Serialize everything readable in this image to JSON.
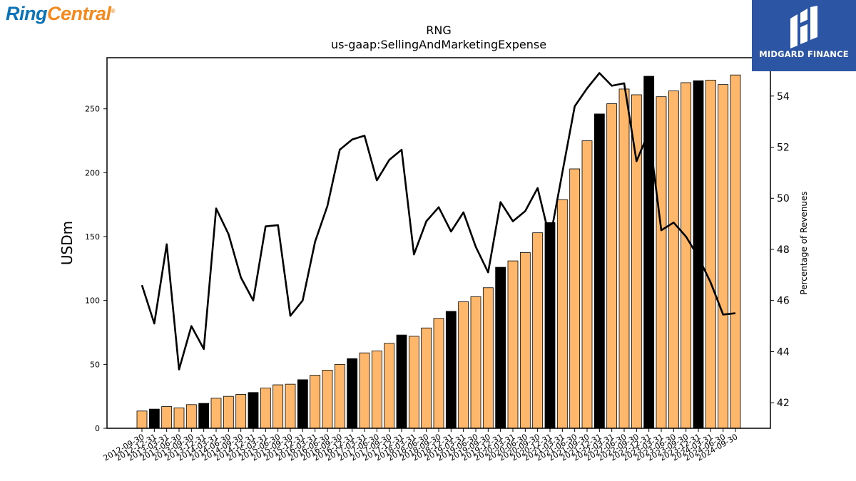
{
  "brand_left": {
    "part1": "Ring",
    "part2": "Central",
    "mark": "®"
  },
  "brand_right": {
    "name": "MIDGARD FINANCE",
    "icon": "midgard-m-logo"
  },
  "colors": {
    "bar_default": "#ffb86b",
    "bar_highlight": "#000000",
    "line": "#000000"
  },
  "chart_data": {
    "type": "bar",
    "title": "RNG",
    "subtitle": "us-gaap:SellingAndMarketingExpense",
    "ylabel": "USDm",
    "y2label": "Percentage of Revenues",
    "ylim": [
      0,
      290
    ],
    "y2lim": [
      41.0,
      55.5
    ],
    "yticks": [
      0,
      50,
      100,
      150,
      200,
      250
    ],
    "y2ticks": [
      42,
      44,
      46,
      48,
      50,
      52,
      54
    ],
    "grid": false,
    "categories": [
      "2012-09-30",
      "2012-12-31",
      "2013-03-31",
      "2013-06-30",
      "2013-09-30",
      "2013-12-31",
      "2014-03-31",
      "2014-06-30",
      "2014-09-30",
      "2014-12-31",
      "2015-03-31",
      "2015-06-30",
      "2015-09-30",
      "2015-12-31",
      "2016-03-31",
      "2016-06-30",
      "2016-09-30",
      "2016-12-31",
      "2017-03-31",
      "2017-06-30",
      "2017-09-30",
      "2017-12-31",
      "2018-03-31",
      "2018-06-30",
      "2018-09-30",
      "2018-12-31",
      "2019-03-31",
      "2019-06-30",
      "2019-09-30",
      "2019-12-31",
      "2020-03-31",
      "2020-06-30",
      "2020-09-30",
      "2020-12-31",
      "2021-03-31",
      "2021-06-30",
      "2021-09-30",
      "2021-12-31",
      "2022-03-31",
      "2022-06-30",
      "2022-09-30",
      "2022-12-31",
      "2023-03-31",
      "2023-06-30",
      "2023-09-30",
      "2023-12-31",
      "2024-03-31",
      "2024-06-30",
      "2024-09-30"
    ],
    "series": [
      {
        "kind": "bar",
        "values": [
          13.5,
          15,
          17,
          16,
          18.5,
          19.5,
          23.5,
          25,
          26.5,
          28,
          31.5,
          34,
          34.5,
          38,
          41.5,
          45.5,
          50,
          54.5,
          59,
          60.5,
          66.5,
          73,
          72,
          78.5,
          86,
          91.5,
          99,
          103,
          110,
          126,
          131,
          137.5,
          153,
          161,
          179,
          203,
          225,
          246,
          254,
          265.5,
          261,
          275.5,
          259.5,
          264,
          270.5,
          272,
          272.5,
          269,
          276.5
        ],
        "highlight": [
          false,
          true,
          false,
          false,
          false,
          true,
          false,
          false,
          false,
          true,
          false,
          false,
          false,
          true,
          false,
          false,
          false,
          true,
          false,
          false,
          false,
          true,
          false,
          false,
          false,
          true,
          false,
          false,
          false,
          true,
          false,
          false,
          false,
          true,
          false,
          false,
          false,
          true,
          false,
          false,
          false,
          true,
          false,
          false,
          false,
          true,
          false,
          false,
          false
        ]
      },
      {
        "kind": "line",
        "axis": "right",
        "values": [
          46.6,
          45.1,
          48.2,
          43.3,
          45.0,
          44.1,
          49.6,
          48.6,
          46.9,
          46.0,
          48.9,
          48.95,
          45.4,
          46.0,
          48.3,
          49.7,
          51.9,
          52.3,
          52.45,
          50.7,
          51.5,
          51.9,
          47.8,
          49.1,
          49.65,
          48.7,
          49.45,
          48.1,
          47.1,
          49.85,
          49.1,
          49.5,
          50.4,
          48.4,
          51.0,
          53.6,
          54.3,
          54.9,
          54.4,
          54.5,
          51.45,
          52.6,
          48.75,
          49.05,
          48.5,
          47.7,
          46.7,
          45.45,
          45.5
        ]
      }
    ]
  }
}
